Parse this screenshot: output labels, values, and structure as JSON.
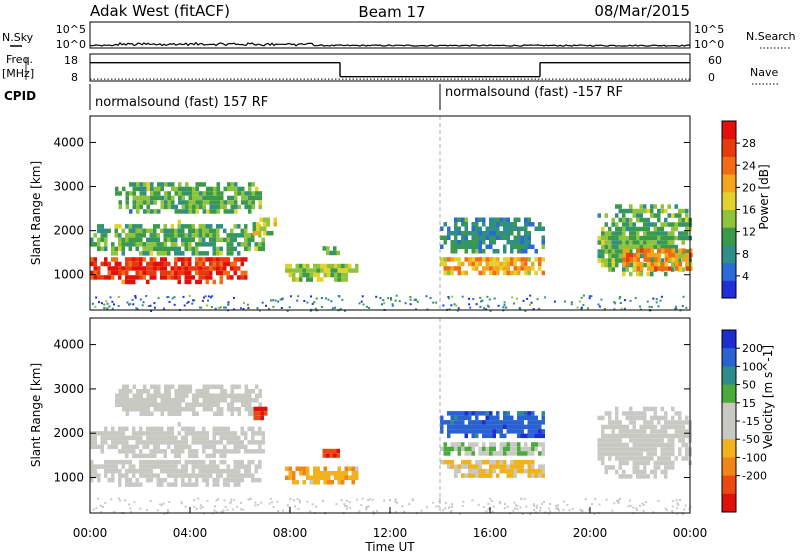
{
  "header": {
    "left": "Adak West (fitACF)",
    "center": "Beam 17",
    "right": "08/Mar/2015"
  },
  "xlabel": "Time UT",
  "chart_data": [
    {
      "type": "line",
      "name": "nsky-nsearch",
      "left_label": "N.Sky",
      "right_label": "N.Search",
      "ytick_labels": [
        "10^5",
        "10^0"
      ],
      "ylim": [
        0,
        5
      ],
      "nsky_level": 0.35,
      "nsky_max": 2.5
    },
    {
      "type": "line",
      "name": "freq-nave",
      "left_label_top": "Freq.",
      "left_label_unit": "[MHz]",
      "right_label": "Nave",
      "left_ticks": [
        8,
        18
      ],
      "right_ticks": [
        0,
        60
      ],
      "ylim": [
        8,
        18
      ],
      "freq_segments": [
        {
          "x": [
            0.0,
            10.0
          ],
          "y": 14.8
        },
        {
          "x": [
            10.0,
            18.0
          ],
          "y": 9.6
        },
        {
          "x": [
            18.0,
            24.0
          ],
          "y": 14.8
        }
      ],
      "nave_level": 8.7
    },
    {
      "type": "table",
      "name": "cpid",
      "label": "CPID",
      "segments": [
        {
          "start": 0.0,
          "end": 14.0,
          "text": "normalsound (fast) 157 RF"
        },
        {
          "start": 14.0,
          "end": 24.0,
          "text": "normalsound (fast) -157 RF"
        }
      ]
    },
    {
      "type": "heatmap",
      "name": "power",
      "ylabel": "Slant Range [km]",
      "colorbar_label": "Power [dB]",
      "colorbar_ticks": [
        4,
        8,
        12,
        16,
        20,
        24,
        28
      ],
      "clim": [
        0,
        32
      ],
      "xlim": [
        0,
        24
      ],
      "ylim": [
        200,
        4600
      ],
      "yticks": [
        1000,
        2000,
        3000,
        4000
      ],
      "colors": [
        "#1f2fd9",
        "#2b6bd6",
        "#2f8f86",
        "#3b9a4a",
        "#8fc33b",
        "#e3d22b",
        "#f5a51c",
        "#f06d14",
        "#e83a0f",
        "#e30f0a"
      ],
      "blobs": [
        {
          "t": [
            0.0,
            6.3
          ],
          "r": [
            850,
            1500
          ],
          "v": 28
        },
        {
          "t": [
            0.0,
            7.0
          ],
          "r": [
            1450,
            2250
          ],
          "v": 12
        },
        {
          "t": [
            1.0,
            6.8
          ],
          "r": [
            2400,
            3200
          ],
          "v": 12
        },
        {
          "t": [
            6.5,
            7.4
          ],
          "r": [
            1900,
            2400
          ],
          "v": 16
        },
        {
          "t": [
            7.8,
            10.7
          ],
          "r": [
            900,
            1350
          ],
          "v": 14
        },
        {
          "t": [
            9.3,
            10.0
          ],
          "r": [
            1450,
            1750
          ],
          "v": 12
        },
        {
          "t": [
            14.0,
            18.2
          ],
          "r": [
            1000,
            1500
          ],
          "v": 20
        },
        {
          "t": [
            14.0,
            18.2
          ],
          "r": [
            1500,
            2400
          ],
          "v": 8
        },
        {
          "t": [
            20.3,
            24.0
          ],
          "r": [
            1000,
            2700
          ],
          "v": 12
        },
        {
          "t": [
            21.3,
            24.0
          ],
          "r": [
            1100,
            1700
          ],
          "v": 22
        }
      ]
    },
    {
      "type": "heatmap",
      "name": "velocity",
      "ylabel": "Slant Range [km]",
      "colorbar_label": "Velocity [m s^-1]",
      "colorbar_ticks": [
        200,
        100,
        50,
        15,
        -15,
        -50,
        -100,
        -200
      ],
      "clim": [
        -250,
        250
      ],
      "xlim": [
        0,
        24
      ],
      "ylim": [
        200,
        4600
      ],
      "yticks": [
        1000,
        2000,
        3000,
        4000
      ],
      "xticks": [
        0,
        4,
        8,
        12,
        16,
        20,
        24
      ],
      "xtick_labels": [
        "00:00",
        "04:00",
        "08:00",
        "12:00",
        "16:00",
        "20:00",
        "00:00"
      ],
      "colors": [
        "#1d2ecf",
        "#2a62d2",
        "#2e8c8a",
        "#4aab3a",
        "#c9c9c4",
        "#c9c9c4",
        "#f2b21d",
        "#f0861a",
        "#ea4a12",
        "#e0100c"
      ],
      "blobs": [
        {
          "t": [
            0.0,
            7.0
          ],
          "r": [
            850,
            1500
          ],
          "v": 0
        },
        {
          "t": [
            0.0,
            7.0
          ],
          "r": [
            1500,
            2250
          ],
          "v": 0
        },
        {
          "t": [
            1.0,
            6.8
          ],
          "r": [
            2400,
            3200
          ],
          "v": 0
        },
        {
          "t": [
            6.4,
            7.0
          ],
          "r": [
            2300,
            2700
          ],
          "v": -200
        },
        {
          "t": [
            7.8,
            10.7
          ],
          "r": [
            900,
            1350
          ],
          "v": -80
        },
        {
          "t": [
            9.3,
            10.0
          ],
          "r": [
            1450,
            1750
          ],
          "v": -200
        },
        {
          "t": [
            14.0,
            18.2
          ],
          "r": [
            1000,
            1500
          ],
          "v": -60
        },
        {
          "t": [
            14.0,
            18.2
          ],
          "r": [
            1500,
            1900
          ],
          "v": 40
        },
        {
          "t": [
            14.0,
            18.2
          ],
          "r": [
            1900,
            2600
          ],
          "v": 180
        },
        {
          "t": [
            20.3,
            24.0
          ],
          "r": [
            1000,
            2700
          ],
          "v": 0
        }
      ]
    }
  ]
}
